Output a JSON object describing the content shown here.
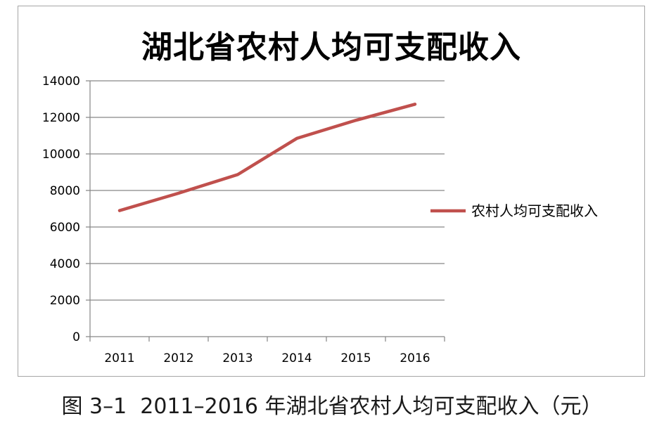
{
  "caption": "图 3–1  2011–2016 年湖北省农村人均可支配收入（元）",
  "colors": {
    "series": "#c0504d",
    "grid": "#868686",
    "axis": "#868686",
    "text": "#000000"
  },
  "chart_data": {
    "type": "line",
    "title": "湖北省农村人均可支配收入",
    "xlabel": "",
    "ylabel": "",
    "categories": [
      "2011",
      "2012",
      "2013",
      "2014",
      "2015",
      "2016"
    ],
    "series": [
      {
        "name": "农村人均可支配收入",
        "values": [
          6900,
          7850,
          8870,
          10850,
          11840,
          12720
        ]
      }
    ],
    "ylim": [
      0,
      14000
    ],
    "yticks": [
      "0",
      "2000",
      "4000",
      "6000",
      "8000",
      "10000",
      "12000",
      "14000"
    ],
    "grid": "horizontal",
    "legend": "right"
  }
}
